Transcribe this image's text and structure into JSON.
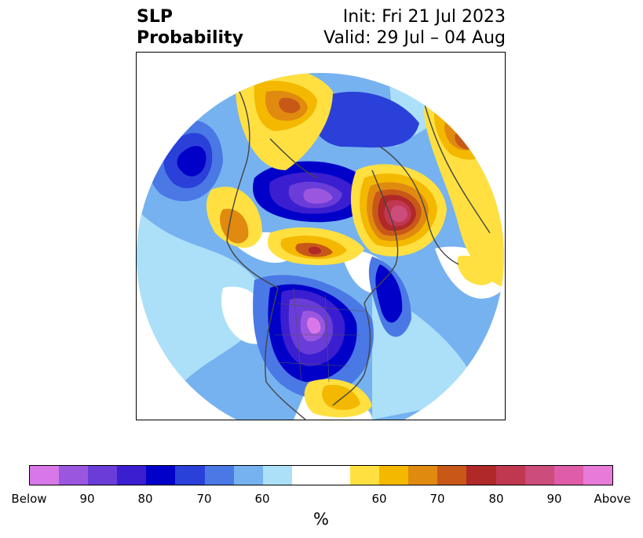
{
  "title": {
    "left_line1": "SLP",
    "left_line2": "Probability",
    "right_line1": "Init: Fri 21 Jul 2023",
    "right_line2": "Valid: 29 Jul – 04 Aug"
  },
  "colorbar": {
    "colors": [
      "#d878e8",
      "#9b56e0",
      "#6a3cd8",
      "#3a1ed0",
      "#0000c8",
      "#2a40d8",
      "#4a78e4",
      "#76b2f0",
      "#ace0f8",
      "#ffffff",
      "#ffe040",
      "#f4b800",
      "#e08a10",
      "#c85818",
      "#b02828",
      "#c03850",
      "#cc4c7c",
      "#de5ca8",
      "#e87ad8"
    ],
    "tick_labels": [
      "Below",
      "90",
      "80",
      "70",
      "60",
      "60",
      "70",
      "80",
      "90",
      "Above"
    ],
    "unit": "%"
  },
  "map": {
    "projection": "north-polar-stereographic",
    "variable": "sea level pressure probability",
    "features": [
      {
        "name": "below-core-north-america",
        "category": "Below"
      },
      {
        "name": "below-arctic-basin",
        "category": "90"
      },
      {
        "name": "above-core-scandinavia-russia",
        "category": "90"
      },
      {
        "name": "above-greenland-sea",
        "category": "70"
      },
      {
        "name": "above-east-asia",
        "category": "70"
      },
      {
        "name": "below-north-pacific",
        "category": "80"
      }
    ]
  }
}
